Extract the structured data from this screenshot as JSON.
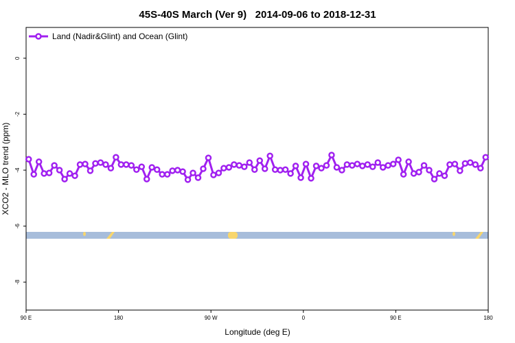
{
  "chart_data": {
    "type": "line",
    "title": "45S-40S March (Ver 9)   2014-09-06 to 2018-12-31",
    "xlabel": "Longitude (deg E)",
    "ylabel": "XCO2 - MLO trend (ppm)",
    "x": [
      92.5,
      97.5,
      102.5,
      107.5,
      112.5,
      117.5,
      122.5,
      127.5,
      132.5,
      137.5,
      142.5,
      147.5,
      152.5,
      157.5,
      162.5,
      167.5,
      172.5,
      177.5,
      182.5,
      187.5,
      192.5,
      197.5,
      202.5,
      207.5,
      212.5,
      217.5,
      222.5,
      227.5,
      232.5,
      237.5,
      242.5,
      247.5,
      252.5,
      257.5,
      262.5,
      267.5,
      272.5,
      277.5,
      282.5,
      287.5,
      292.5,
      297.5,
      302.5,
      307.5,
      312.5,
      317.5,
      322.5,
      327.5,
      332.5,
      337.5,
      342.5,
      347.5,
      352.5,
      357.5,
      362.5,
      367.5,
      372.5,
      377.5,
      382.5,
      387.5,
      392.5,
      397.5,
      402.5,
      407.5,
      412.5,
      417.5,
      422.5,
      427.5,
      432.5,
      437.5,
      442.5,
      447.5,
      452.5,
      457.5,
      462.5,
      467.5,
      472.5,
      477.5,
      482.5,
      487.5,
      492.5,
      497.5,
      502.5,
      507.5,
      512.5,
      517.5,
      522.5,
      527.5,
      532.5,
      537.5
    ],
    "series": [
      {
        "name": "Land (Nadir&Glint) and Ocean (Glint)",
        "color": "#a020f0",
        "values": [
          -3.61,
          -4.15,
          -3.7,
          -4.12,
          -4.1,
          -3.83,
          -4.0,
          -4.32,
          -4.12,
          -4.2,
          -3.8,
          -3.78,
          -4.02,
          -3.76,
          -3.73,
          -3.8,
          -3.93,
          -3.54,
          -3.8,
          -3.8,
          -3.83,
          -3.98,
          -3.88,
          -4.32,
          -3.9,
          -3.98,
          -4.15,
          -4.15,
          -4.02,
          -4.0,
          -4.05,
          -4.34,
          -4.1,
          -4.27,
          -3.95,
          -3.56,
          -4.17,
          -4.1,
          -3.93,
          -3.9,
          -3.8,
          -3.83,
          -3.88,
          -3.73,
          -3.98,
          -3.66,
          -3.95,
          -3.49,
          -3.98,
          -4.0,
          -3.98,
          -4.12,
          -3.85,
          -4.27,
          -3.78,
          -4.29,
          -3.85,
          -3.93,
          -3.83,
          -3.46,
          -3.9,
          -4.0,
          -3.8,
          -3.83,
          -3.78,
          -3.85,
          -3.8,
          -3.88,
          -3.73,
          -3.9,
          -3.83,
          -3.78,
          -3.63,
          -4.15,
          -3.7,
          -4.12,
          -4.07,
          -3.83,
          -4.0,
          -4.32,
          -4.12,
          -4.2,
          -3.8,
          -3.78,
          -4.02,
          -3.76,
          -3.73,
          -3.8,
          -3.93,
          -3.54
        ]
      }
    ],
    "xlim": [
      90,
      540
    ],
    "xticks": [
      {
        "value": 90,
        "label": "90 E"
      },
      180,
      {
        "value": 270,
        "label": "90 W"
      },
      {
        "value": 360,
        "label": "0"
      },
      {
        "value": 450,
        "label": "90 E"
      },
      {
        "value": 540,
        "label": "180"
      }
    ],
    "ylim": [
      -9,
      1.1
    ],
    "yticks": [
      -8,
      -6,
      -4,
      -2,
      0
    ],
    "legend": "upper left"
  }
}
